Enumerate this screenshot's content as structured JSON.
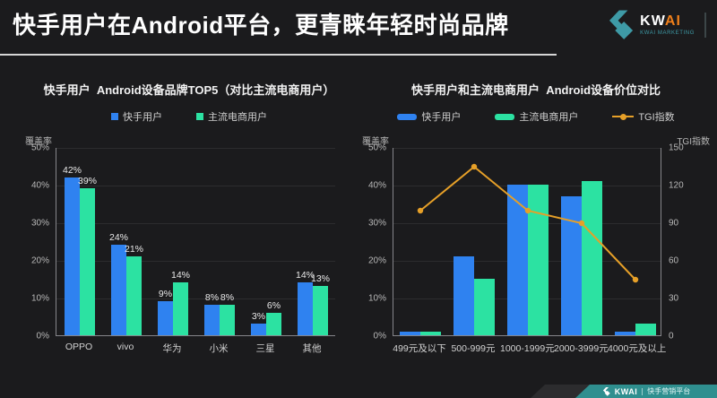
{
  "header": {
    "title": "快手用户在Android平台，更青睐年轻时尚品牌"
  },
  "logo": {
    "brand_prefix": "KW",
    "brand_suffix": "AI",
    "subtitle": "KWAI MARKETING"
  },
  "footer": {
    "brand": "KWAI",
    "label": "快手营销平台"
  },
  "colors": {
    "background": "#1b1b1d",
    "kuaishou_blue": "#2f82f0",
    "ecommerce_green": "#2ce2a2",
    "tgi_orange": "#e6a028",
    "kwai_teal": "#2f8f8f",
    "logo_teal": "#3e9aa6",
    "logo_orange": "#ef7f1a"
  },
  "chart_data": [
    {
      "type": "bar",
      "title": "快手用户  Android设备品牌TOP5（对比主流电商用户）",
      "categories": [
        "OPPO",
        "vivo",
        "华为",
        "小米",
        "三星",
        "其他"
      ],
      "series": [
        {
          "name": "快手用户",
          "type": "bar",
          "color": "#2f82f0",
          "values": [
            42,
            24,
            9,
            8,
            3,
            14
          ]
        },
        {
          "name": "主流电商用户",
          "type": "bar",
          "color": "#2ce2a2",
          "values": [
            39,
            21,
            14,
            8,
            6,
            13
          ]
        }
      ],
      "ylabel_left": "覆盖率",
      "yticks_left": [
        "0%",
        "10%",
        "20%",
        "30%",
        "40%",
        "50%"
      ],
      "ylim_left": [
        0,
        50
      ],
      "value_suffix": "%",
      "show_values": true,
      "grid": true,
      "legend_position": "top",
      "legend_marker": "square"
    },
    {
      "type": "bar+line",
      "title": "快手用户和主流电商用户  Android设备价位对比",
      "categories": [
        "499元及以下",
        "500-999元",
        "1000-1999元",
        "2000-3999元",
        "4000元及以上"
      ],
      "series": [
        {
          "name": "快手用户",
          "type": "bar",
          "color": "#2f82f0",
          "values": [
            1,
            21,
            40,
            37,
            1
          ]
        },
        {
          "name": "主流电商用户",
          "type": "bar",
          "color": "#2ce2a2",
          "values": [
            1,
            15,
            40,
            41,
            3
          ]
        },
        {
          "name": "TGI指数",
          "type": "line",
          "axis": "right",
          "color": "#e6a028",
          "values": [
            100,
            135,
            100,
            90,
            45
          ]
        }
      ],
      "ylabel_left": "覆盖率",
      "ylabel_right": "TGI指数",
      "yticks_left": [
        "0%",
        "10%",
        "20%",
        "30%",
        "40%",
        "50%"
      ],
      "yticks_right": [
        "0",
        "30",
        "60",
        "90",
        "120",
        "150"
      ],
      "ylim_left": [
        0,
        50
      ],
      "ylim_right": [
        0,
        150
      ],
      "show_values": false,
      "grid": true,
      "legend_position": "top",
      "legend_marker": "bar"
    }
  ]
}
